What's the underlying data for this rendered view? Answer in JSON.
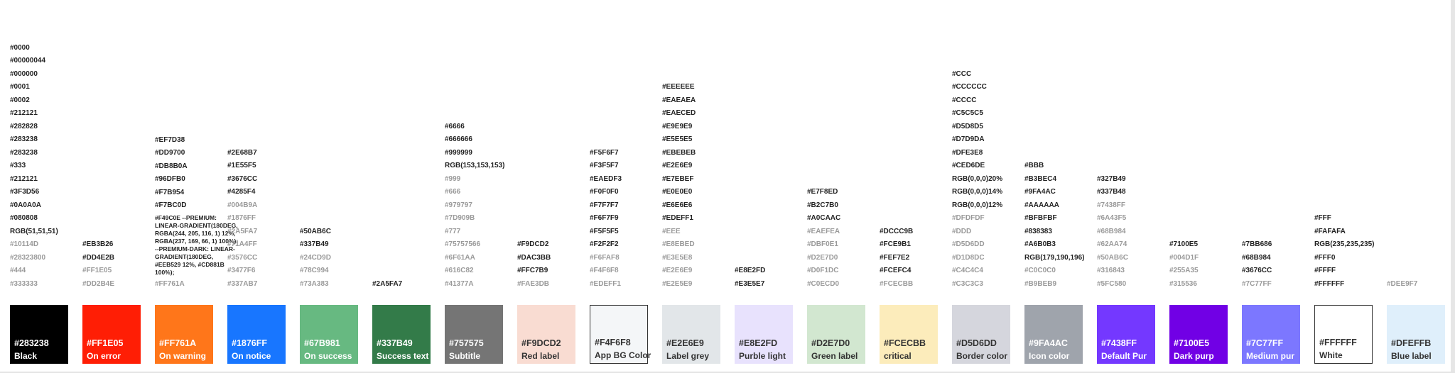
{
  "columns": [
    {
      "values": [
        "#0000",
        "#00000044",
        "#000000",
        "#0001",
        "#0002",
        "#212121",
        "#282828",
        "#283238",
        "#283238",
        "#333",
        "#212121",
        "#3F3D56",
        "#0A0A0A",
        "#080808",
        "RGB(51,51,51)"
      ],
      "muted": [
        "#10114D",
        "#28323800",
        "#444",
        "#333333"
      ],
      "swatch": {
        "hex": "#283238",
        "label": "Black",
        "bg": "#000000",
        "fg": "#ffffff",
        "border": ""
      }
    },
    {
      "values": [
        "#EB3B26",
        "#DD4E2B"
      ],
      "muted": [
        "#FF1E05",
        "#DD2B4E"
      ],
      "swatch": {
        "hex": "#FF1E05",
        "label": "On error",
        "bg": "#FF1E05",
        "fg": "#ffffff",
        "border": ""
      }
    },
    {
      "values": [
        "#EF7D38",
        "#DD9700",
        "#DB8B0A",
        "#96DFB0",
        "#F7B954",
        "#F7BC0D"
      ],
      "multi": "#F49C0E --PREMIUM: LINEAR-GRADIENT(180DEG, RGBA(244, 205, 116, 1) 12%, RGBA(237, 169, 66, 1) 100%); --PREMIUM-DARK: LINEAR-GRADIENT(180DEG, #EEB529 12%, #CD881B 100%);",
      "muted": [
        "#FF761A"
      ],
      "swatch": {
        "hex": "#FF761A",
        "label": "On warning",
        "bg": "#FF761A",
        "fg": "#ffffff",
        "border": ""
      }
    },
    {
      "values": [
        "#2E68B7",
        "#1E55F5",
        "#3676CC",
        "#4285F4"
      ],
      "muted": [
        "#004B9A",
        "#1876FF",
        "#2A5FA7",
        "#71A4FF",
        "#3576CC",
        "#3477F6",
        "#337AB7"
      ],
      "swatch": {
        "hex": "#1876FF",
        "label": "On notice",
        "bg": "#1876FF",
        "fg": "#ffffff",
        "border": ""
      }
    },
    {
      "values": [
        "#50AB6C",
        "#337B49"
      ],
      "muted": [
        "#24CD9D",
        "#78C994",
        "#73A383"
      ],
      "swatch": {
        "hex": "#67B981",
        "label": "On success",
        "bg": "#67B981",
        "fg": "#ffffff",
        "border": ""
      }
    },
    {
      "values": [
        "#2A5FA7"
      ],
      "muted": [],
      "swatch": {
        "hex": "#337B49",
        "label": "Success text",
        "bg": "#337B49",
        "fg": "#ffffff",
        "border": ""
      }
    },
    {
      "values": [
        "#6666",
        "#666666",
        "#999999",
        "RGB(153,153,153)"
      ],
      "muted": [
        "#999",
        "#666",
        "#979797",
        "#7D909B",
        "#777",
        "#75757566",
        "#6F61AA",
        "#616C82",
        "#41377A"
      ],
      "swatch": {
        "hex": "#757575",
        "label": "Subtitle",
        "bg": "#757575",
        "fg": "#ffffff",
        "border": ""
      }
    },
    {
      "values": [
        "#F9DCD2",
        "#DAC3BB",
        "#FFC7B9"
      ],
      "muted": [
        "#FAE3DB"
      ],
      "swatch": {
        "hex": "#F9DCD2",
        "label": "Red label",
        "bg": "#F9DCD2",
        "fg": "#333333",
        "border": ""
      }
    },
    {
      "values": [
        "#F5F6F7",
        "#F3F5F7",
        "#EAEDF3",
        "#F0F0F0",
        "#F7F7F7",
        "#F6F7F9",
        "#F5F5F5",
        "#F2F2F2"
      ],
      "muted": [
        "#F6FAF8",
        "#F4F6F8",
        "#EDEFF1"
      ],
      "swatch": {
        "hex": "#F4F6F8",
        "label": "App BG Color",
        "bg": "#F4F6F8",
        "fg": "#333333",
        "border": "#333333"
      }
    },
    {
      "values": [
        "#EEEEEE",
        "#EAEAEA",
        "#EAECED",
        "#E9E9E9",
        "#E5E5E5",
        "#EBEBEB",
        "#E2E6E9",
        "#E7EBEF",
        "#E0E0E0",
        "#E6E6E6",
        "#EDEFF1"
      ],
      "muted": [
        "#EEE",
        "#E8EBED",
        "#E3E5E8",
        "#E2E6E9",
        "#E2E5E9"
      ],
      "swatch": {
        "hex": "#E2E6E9",
        "label": "Label grey",
        "bg": "#E2E6E9",
        "fg": "#333333",
        "border": ""
      }
    },
    {
      "values": [
        "#E8E2FD",
        "#E3E5E7"
      ],
      "muted": [],
      "swatch": {
        "hex": "#E8E2FD",
        "label": "Purble light",
        "bg": "#E8E2FD",
        "fg": "#333333",
        "border": ""
      }
    },
    {
      "values": [
        "#E7F8ED",
        "#B2C7B0",
        "#A0CAAC"
      ],
      "muted": [
        "#EAEFEA",
        "#DBF0E1",
        "#D2E7D0",
        "#D0F1DC",
        "#C0ECD0"
      ],
      "swatch": {
        "hex": "#D2E7D0",
        "label": "Green label",
        "bg": "#D2E7D0",
        "fg": "#333333",
        "border": ""
      }
    },
    {
      "values": [
        "#DCCC9B",
        "#FCE9B1",
        "#FEF7E2",
        "#FCEFC4"
      ],
      "muted": [
        "#FCECBB"
      ],
      "swatch": {
        "hex": "#FCECBB",
        "label": "critical",
        "bg": "#FCECBB",
        "fg": "#333333",
        "border": ""
      }
    },
    {
      "values": [
        "#CCC",
        "#CCCCCC",
        "#CCCC",
        "#C5C5C5",
        "#D5D8D5",
        "#D7D9DA",
        "#DFE3E8",
        "#CED6DE",
        "RGB(0,0,0)20%",
        "RGB(0,0,0)14%",
        "RGB(0,0,0)12%"
      ],
      "muted": [
        "#DFDFDF",
        "#DDD",
        "#D5D6DD",
        "#D1D8DC",
        "#C4C4C4",
        "#C3C3C3"
      ],
      "swatch": {
        "hex": "#D5D6DD",
        "label": "Border color",
        "bg": "#D5D6DD",
        "fg": "#333333",
        "border": ""
      }
    },
    {
      "values": [
        "#BBB",
        "#B3BEC4",
        "#9FA4AC",
        "#AAAAAA",
        "#BFBFBF",
        "#838383",
        "#A6B0B3",
        "RGB(179,190,196)"
      ],
      "muted": [
        "#C0C0C0",
        "#B9BEB9"
      ],
      "swatch": {
        "hex": "#9FA4AC",
        "label": "Icon color",
        "bg": "#9FA4AC",
        "fg": "#ffffff",
        "border": ""
      }
    },
    {
      "values": [
        "#327B49",
        "#337B48"
      ],
      "muted": [
        "#7438FF",
        "#6A43F5",
        "#68B984",
        "#62AA74",
        "#50AB6C",
        "#316843",
        "#5FC580"
      ],
      "swatch": {
        "hex": "#7438FF",
        "label": "Default Pur",
        "bg": "#7438FF",
        "fg": "#ffffff",
        "border": ""
      }
    },
    {
      "values": [
        "#7100E5"
      ],
      "muted": [
        "#004D1F",
        "#255A35",
        "#315536"
      ],
      "swatch": {
        "hex": "#7100E5",
        "label": "Dark purp",
        "bg": "#7100E5",
        "fg": "#ffffff",
        "border": ""
      }
    },
    {
      "values": [
        "#7BB686",
        "#68B984",
        "#3676CC"
      ],
      "muted": [
        "#7C77FF"
      ],
      "swatch": {
        "hex": "#7C77FF",
        "label": "Medium pur",
        "bg": "#7C77FF",
        "fg": "#ffffff",
        "border": ""
      }
    },
    {
      "values": [
        "#FFF",
        "#FAFAFA",
        "RGB(235,235,235)",
        "#FFF0",
        "#FFFF",
        "#FFFFFF"
      ],
      "muted": [],
      "swatch": {
        "hex": "#FFFFFF",
        "label": "White",
        "bg": "#FFFFFF",
        "fg": "#333333",
        "border": "#333333"
      }
    },
    {
      "values": [],
      "muted": [
        "#DEE9F7"
      ],
      "swatch": {
        "hex": "#DFEFFB",
        "label": "Blue label",
        "bg": "#DFEFFB",
        "fg": "#333333",
        "border": ""
      }
    }
  ]
}
